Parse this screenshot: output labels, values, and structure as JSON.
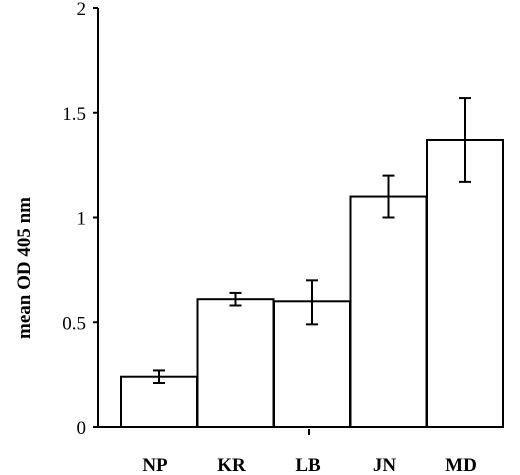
{
  "chart_data": {
    "type": "bar",
    "title": "",
    "xlabel": "",
    "ylabel": "mean OD 405 nm",
    "categories": [
      "NP",
      "KR",
      "LB",
      "JN",
      "MD"
    ],
    "values": [
      0.24,
      0.61,
      0.6,
      1.1,
      1.37
    ],
    "error_upper": [
      0.03,
      0.03,
      0.1,
      0.1,
      0.2
    ],
    "error_lower": [
      0.03,
      0.03,
      0.11,
      0.1,
      0.2
    ],
    "ylim": [
      0,
      2
    ],
    "yticks": [
      0,
      0.5,
      1,
      1.5,
      2
    ],
    "ytick_labels": [
      "0",
      "0.5",
      "1",
      "1.5",
      "2"
    ],
    "grid": false,
    "bar_fill": "#ffffff",
    "bar_stroke": "#000000"
  }
}
